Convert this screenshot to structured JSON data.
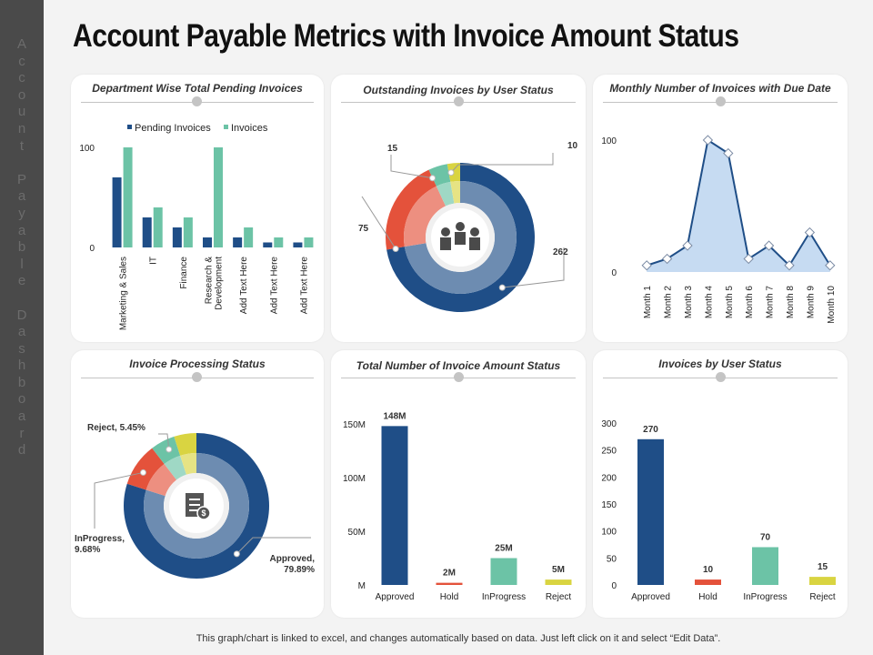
{
  "sidebar_text": "Account Payable Dashboard",
  "title": "Account Payable Metrics with Invoice Amount Status",
  "footer": "This graph/chart is linked to excel, and changes automatically based on data. Just left click on it and select “Edit Data”.",
  "colors": {
    "navy": "#1f4e87",
    "mint": "#6cc3a6",
    "red": "#e4523b",
    "yellow": "#d9d441",
    "lightblue": "#c6dbf2",
    "teal": "#16a085"
  },
  "chart_data": [
    {
      "id": "dept",
      "type": "bar",
      "title": "Department Wise Total Pending Invoices",
      "legend": "top",
      "categories": [
        "Marketing & Sales",
        "IT",
        "Finance",
        "Research & Development",
        "Add Text Here",
        "Add Text Here",
        "Add Text Here"
      ],
      "series": [
        {
          "name": "Pending Invoices",
          "values": [
            70,
            30,
            20,
            10,
            10,
            5,
            5
          ]
        },
        {
          "name": "Invoices",
          "values": [
            100,
            40,
            30,
            100,
            20,
            10,
            10
          ]
        }
      ],
      "yticks": [
        "0",
        "100"
      ],
      "ylim": [
        0,
        100
      ]
    },
    {
      "id": "outstanding",
      "type": "pie",
      "title": "Outstanding Invoices by User Status",
      "values": [
        262,
        75,
        15,
        10
      ],
      "labels": [
        "262",
        "75",
        "15",
        "10"
      ],
      "colors": [
        "#1f4e87",
        "#e4523b",
        "#6cc3a6",
        "#d9d441"
      ]
    },
    {
      "id": "monthly",
      "type": "area",
      "title": "Monthly Number of Invoices with Due Date",
      "categories": [
        "Month 1",
        "Month 2",
        "Month 3",
        "Month 4",
        "Month 5",
        "Month 6",
        "Month 7",
        "Month 8",
        "Month 9",
        "Month 10"
      ],
      "values": [
        5,
        10,
        20,
        100,
        90,
        10,
        20,
        5,
        30,
        5
      ],
      "yticks": [
        "0",
        "100"
      ],
      "ylim": [
        0,
        100
      ]
    },
    {
      "id": "processing",
      "type": "pie",
      "title": "Invoice Processing Status",
      "values": [
        79.89,
        9.68,
        5.45,
        4.98
      ],
      "labels": [
        "Approved, 79.89%",
        "InProgress, 9.68%",
        "Reject, 5.45%",
        ""
      ],
      "colors": [
        "#1f4e87",
        "#e4523b",
        "#6cc3a6",
        "#d9d441"
      ]
    },
    {
      "id": "amount",
      "type": "bar",
      "title": "Total Number of Invoice Amount Status",
      "categories": [
        "Approved",
        "Hold",
        "InProgress",
        "Reject"
      ],
      "values": [
        148,
        2,
        25,
        5
      ],
      "data_labels": [
        "148M",
        "2M",
        "25M",
        "5M"
      ],
      "colors": [
        "#1f4e87",
        "#e4523b",
        "#6cc3a6",
        "#d9d441"
      ],
      "yticks": [
        "M",
        "50M",
        "100M",
        "150M"
      ],
      "ylim": [
        0,
        150
      ]
    },
    {
      "id": "userstatus",
      "type": "bar",
      "title": "Invoices by User Status",
      "categories": [
        "Approved",
        "Hold",
        "InProgress",
        "Reject"
      ],
      "values": [
        270,
        10,
        70,
        15
      ],
      "data_labels": [
        "270",
        "10",
        "70",
        "15"
      ],
      "colors": [
        "#1f4e87",
        "#e4523b",
        "#6cc3a6",
        "#d9d441"
      ],
      "yticks": [
        "0",
        "50",
        "100",
        "150",
        "200",
        "250",
        "300"
      ],
      "ylim": [
        0,
        300
      ]
    }
  ]
}
